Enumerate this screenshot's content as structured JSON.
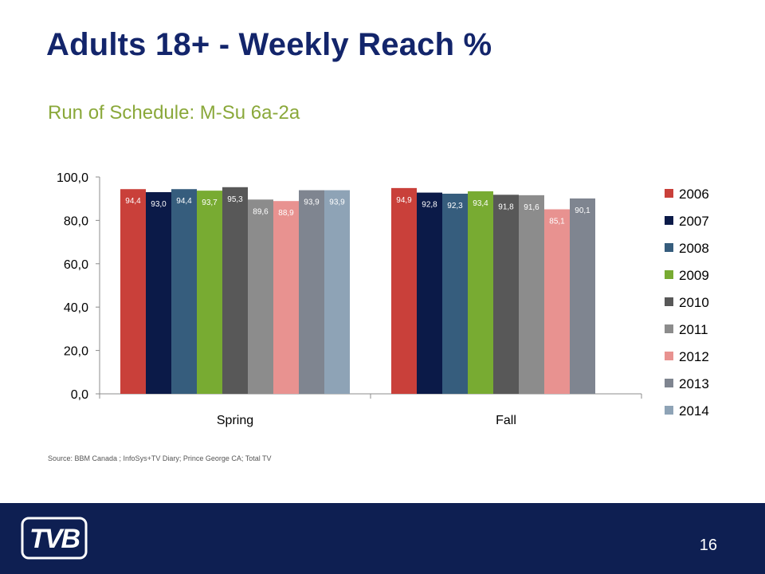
{
  "title": "Adults 18+ - Weekly Reach %",
  "subtitle": "Run of Schedule: M-Su 6a-2a",
  "source": "Source: BBM Canada ; InfoSys+TV Diary; Prince George CA; Total TV",
  "page_number": "16",
  "logo_text": "TVB",
  "chart_data": {
    "type": "bar",
    "categories": [
      "Spring",
      "Fall"
    ],
    "y_ticks": [
      "0,0",
      "20,0",
      "40,0",
      "60,0",
      "80,0",
      "100,0"
    ],
    "ylim": [
      0,
      100
    ],
    "legend_position": "right",
    "grid": false,
    "series": [
      {
        "name": "2006",
        "color": "#c9403a",
        "values": [
          94.4,
          94.9
        ],
        "labels": [
          "94,4",
          "94,9"
        ]
      },
      {
        "name": "2007",
        "color": "#0b1a48",
        "values": [
          93.0,
          92.8
        ],
        "labels": [
          "93,0",
          "92,8"
        ]
      },
      {
        "name": "2008",
        "color": "#365d7d",
        "values": [
          94.4,
          92.3
        ],
        "labels": [
          "94,4",
          "92,3"
        ]
      },
      {
        "name": "2009",
        "color": "#78ab32",
        "values": [
          93.7,
          93.4
        ],
        "labels": [
          "93,7",
          "93,4"
        ]
      },
      {
        "name": "2010",
        "color": "#585858",
        "values": [
          95.3,
          91.8
        ],
        "labels": [
          "95,3",
          "91,8"
        ]
      },
      {
        "name": "2011",
        "color": "#8c8c8c",
        "values": [
          89.6,
          91.6
        ],
        "labels": [
          "89,6",
          "91,6"
        ]
      },
      {
        "name": "2012",
        "color": "#e89290",
        "values": [
          88.9,
          85.1
        ],
        "labels": [
          "88,9",
          "85,1"
        ]
      },
      {
        "name": "2013",
        "color": "#7f8590",
        "values": [
          93.9,
          90.1
        ],
        "labels": [
          "93,9",
          "90,1"
        ]
      },
      {
        "name": "2014",
        "color": "#8ea3b6",
        "values": [
          93.9,
          null
        ],
        "labels": [
          "93,9",
          ""
        ]
      }
    ]
  }
}
